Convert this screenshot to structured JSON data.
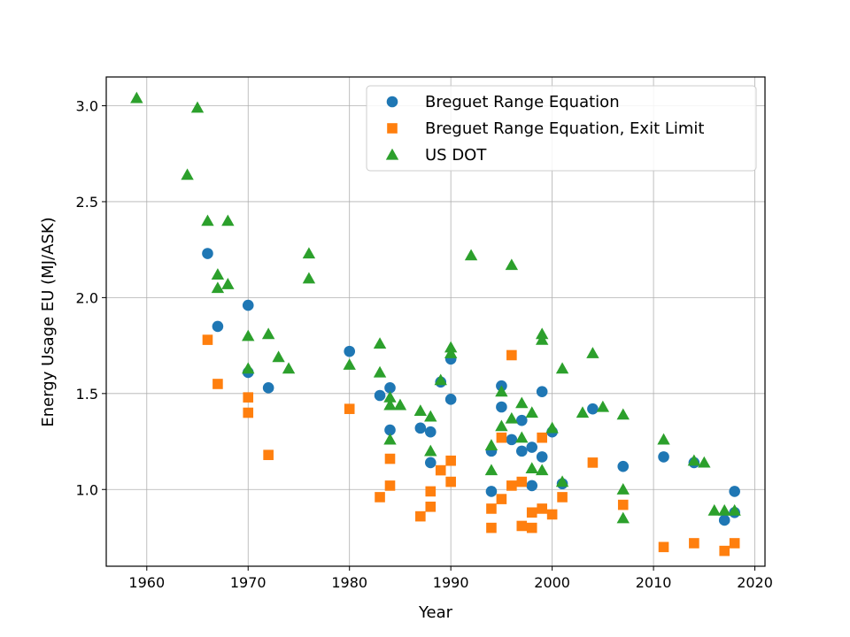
{
  "chart_data": {
    "type": "scatter",
    "title": "",
    "xlabel": "Year",
    "ylabel": "Energy Usage EU (MJ/ASK)",
    "xlim": [
      1956,
      2021
    ],
    "ylim": [
      0.6,
      3.15
    ],
    "xticks": [
      1960,
      1970,
      1980,
      1990,
      2000,
      2010,
      2020
    ],
    "yticks": [
      1.0,
      1.5,
      2.0,
      2.5,
      3.0
    ],
    "xtick_labels": [
      "1960",
      "1970",
      "1980",
      "1990",
      "2000",
      "2010",
      "2020"
    ],
    "ytick_labels": [
      "1.0",
      "1.5",
      "2.0",
      "2.5",
      "3.0"
    ],
    "grid": true,
    "legend_position": "top-right",
    "series": [
      {
        "name": "Breguet Range Equation",
        "marker": "circle",
        "color": "#1f77b4",
        "points": [
          [
            1966,
            2.23
          ],
          [
            1967,
            1.85
          ],
          [
            1970,
            1.96
          ],
          [
            1970,
            1.61
          ],
          [
            1972,
            1.53
          ],
          [
            1980,
            1.72
          ],
          [
            1983,
            1.49
          ],
          [
            1984,
            1.53
          ],
          [
            1984,
            1.31
          ],
          [
            1987,
            1.32
          ],
          [
            1988,
            1.3
          ],
          [
            1988,
            1.14
          ],
          [
            1989,
            1.56
          ],
          [
            1990,
            1.68
          ],
          [
            1990,
            1.47
          ],
          [
            1994,
            1.2
          ],
          [
            1994,
            0.99
          ],
          [
            1995,
            1.54
          ],
          [
            1995,
            1.43
          ],
          [
            1996,
            1.26
          ],
          [
            1997,
            1.36
          ],
          [
            1997,
            1.2
          ],
          [
            1998,
            1.22
          ],
          [
            1998,
            1.02
          ],
          [
            1999,
            1.51
          ],
          [
            1999,
            1.17
          ],
          [
            2000,
            1.3
          ],
          [
            2001,
            1.03
          ],
          [
            2004,
            1.42
          ],
          [
            2007,
            1.12
          ],
          [
            2011,
            1.17
          ],
          [
            2014,
            1.14
          ],
          [
            2017,
            0.84
          ],
          [
            2018,
            0.99
          ],
          [
            2018,
            0.88
          ]
        ]
      },
      {
        "name": "Breguet Range Equation, Exit Limit",
        "marker": "square",
        "color": "#ff7f0e",
        "points": [
          [
            1966,
            1.78
          ],
          [
            1967,
            1.55
          ],
          [
            1970,
            1.48
          ],
          [
            1970,
            1.4
          ],
          [
            1972,
            1.18
          ],
          [
            1980,
            1.42
          ],
          [
            1983,
            0.96
          ],
          [
            1984,
            1.16
          ],
          [
            1984,
            1.02
          ],
          [
            1987,
            0.86
          ],
          [
            1988,
            0.99
          ],
          [
            1988,
            0.91
          ],
          [
            1989,
            1.1
          ],
          [
            1990,
            1.15
          ],
          [
            1990,
            1.04
          ],
          [
            1994,
            0.9
          ],
          [
            1994,
            0.8
          ],
          [
            1995,
            1.27
          ],
          [
            1995,
            0.95
          ],
          [
            1996,
            1.7
          ],
          [
            1996,
            1.02
          ],
          [
            1997,
            1.04
          ],
          [
            1997,
            0.81
          ],
          [
            1998,
            0.88
          ],
          [
            1998,
            0.8
          ],
          [
            1999,
            1.27
          ],
          [
            1999,
            0.9
          ],
          [
            2000,
            0.87
          ],
          [
            2001,
            0.96
          ],
          [
            2004,
            1.14
          ],
          [
            2007,
            0.92
          ],
          [
            2011,
            0.7
          ],
          [
            2014,
            0.72
          ],
          [
            2017,
            0.68
          ],
          [
            2018,
            0.72
          ]
        ]
      },
      {
        "name": "US DOT",
        "marker": "triangle",
        "color": "#2ca02c",
        "points": [
          [
            1959,
            3.04
          ],
          [
            1964,
            2.64
          ],
          [
            1965,
            2.99
          ],
          [
            1966,
            2.4
          ],
          [
            1967,
            2.12
          ],
          [
            1967,
            2.05
          ],
          [
            1968,
            2.4
          ],
          [
            1968,
            2.07
          ],
          [
            1970,
            1.8
          ],
          [
            1970,
            1.63
          ],
          [
            1972,
            1.81
          ],
          [
            1973,
            1.69
          ],
          [
            1974,
            1.63
          ],
          [
            1976,
            2.23
          ],
          [
            1976,
            2.1
          ],
          [
            1980,
            1.65
          ],
          [
            1983,
            1.76
          ],
          [
            1983,
            1.61
          ],
          [
            1984,
            1.48
          ],
          [
            1984,
            1.44
          ],
          [
            1984,
            1.26
          ],
          [
            1985,
            1.44
          ],
          [
            1987,
            1.41
          ],
          [
            1988,
            1.38
          ],
          [
            1988,
            1.2
          ],
          [
            1989,
            1.57
          ],
          [
            1990,
            1.74
          ],
          [
            1990,
            1.71
          ],
          [
            1992,
            2.22
          ],
          [
            1994,
            1.23
          ],
          [
            1994,
            1.1
          ],
          [
            1995,
            1.51
          ],
          [
            1995,
            1.33
          ],
          [
            1996,
            2.17
          ],
          [
            1996,
            1.37
          ],
          [
            1997,
            1.45
          ],
          [
            1997,
            1.27
          ],
          [
            1998,
            1.4
          ],
          [
            1998,
            1.11
          ],
          [
            1999,
            1.81
          ],
          [
            1999,
            1.78
          ],
          [
            1999,
            1.1
          ],
          [
            2000,
            1.32
          ],
          [
            2001,
            1.63
          ],
          [
            2001,
            1.04
          ],
          [
            2003,
            1.4
          ],
          [
            2004,
            1.71
          ],
          [
            2005,
            1.43
          ],
          [
            2007,
            1.39
          ],
          [
            2007,
            1.0
          ],
          [
            2007,
            0.85
          ],
          [
            2011,
            1.26
          ],
          [
            2014,
            1.15
          ],
          [
            2015,
            1.14
          ],
          [
            2016,
            0.89
          ],
          [
            2017,
            0.89
          ],
          [
            2018,
            0.89
          ]
        ]
      }
    ]
  }
}
